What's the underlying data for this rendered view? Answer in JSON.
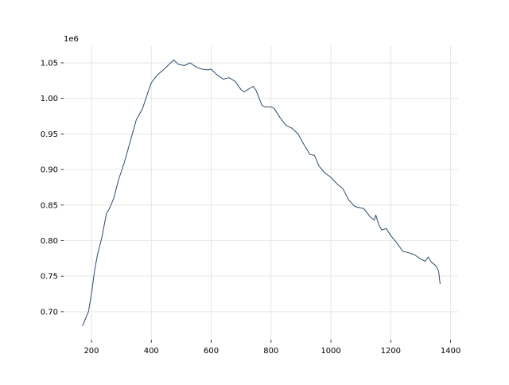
{
  "chart_data": {
    "type": "line",
    "title": "",
    "xlabel": "",
    "ylabel": "",
    "y_offset_label": "1e6",
    "xlim": [
      107,
      1425
    ],
    "ylim": [
      0.6605,
      1.0739
    ],
    "xticks": [
      200,
      400,
      600,
      800,
      1000,
      1200,
      1400
    ],
    "xtick_labels": [
      "200",
      "400",
      "600",
      "800",
      "1000",
      "1200",
      "1400"
    ],
    "yticks": [
      0.7,
      0.75,
      0.8,
      0.85,
      0.9,
      0.95,
      1.0,
      1.05
    ],
    "ytick_labels": [
      "0.70",
      "0.75",
      "0.80",
      "0.85",
      "0.90",
      "0.95",
      "1.00",
      "1.05"
    ],
    "grid": true,
    "line_color": "#2e4a6b",
    "grid_color": "#e6e6e6",
    "series": [
      {
        "x": [
          170,
          190,
          200,
          210,
          220,
          235,
          250,
          260,
          275,
          290,
          310,
          330,
          350,
          370,
          390,
          400,
          420,
          440,
          460,
          475,
          490,
          510,
          530,
          550,
          570,
          590,
          600,
          620,
          640,
          660,
          680,
          700,
          710,
          740,
          750,
          770,
          780,
          800,
          810,
          830,
          850,
          870,
          890,
          910,
          930,
          945,
          960,
          980,
          1000,
          1020,
          1040,
          1060,
          1080,
          1100,
          1110,
          1130,
          1145,
          1150,
          1160,
          1170,
          1185,
          1200,
          1220,
          1240,
          1260,
          1280,
          1300,
          1315,
          1325,
          1335,
          1350,
          1360,
          1365
        ],
        "y": [
          0.68,
          0.7,
          0.725,
          0.757,
          0.78,
          0.805,
          0.838,
          0.845,
          0.86,
          0.885,
          0.91,
          0.94,
          0.97,
          0.985,
          1.01,
          1.022,
          1.033,
          1.04,
          1.048,
          1.054,
          1.048,
          1.046,
          1.05,
          1.044,
          1.041,
          1.04,
          1.041,
          1.033,
          1.027,
          1.029,
          1.024,
          1.012,
          1.009,
          1.017,
          1.011,
          0.99,
          0.988,
          0.988,
          0.986,
          0.973,
          0.962,
          0.958,
          0.95,
          0.935,
          0.921,
          0.92,
          0.905,
          0.895,
          0.889,
          0.88,
          0.873,
          0.857,
          0.848,
          0.846,
          0.845,
          0.834,
          0.829,
          0.836,
          0.822,
          0.815,
          0.817,
          0.807,
          0.797,
          0.785,
          0.783,
          0.78,
          0.774,
          0.771,
          0.777,
          0.77,
          0.765,
          0.757,
          0.739
        ]
      }
    ]
  }
}
